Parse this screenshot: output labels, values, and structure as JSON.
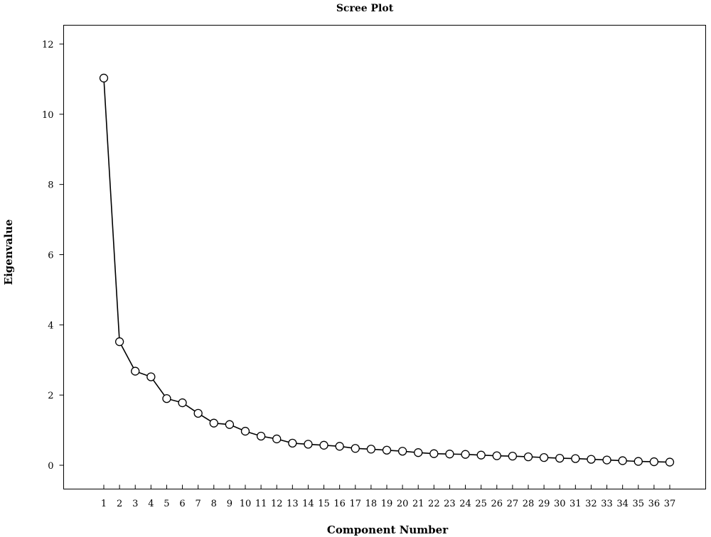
{
  "chart_data": {
    "type": "line",
    "title": "Scree Plot",
    "xlabel": "Component Number",
    "ylabel": "Eigenvalue",
    "x": [
      1,
      2,
      3,
      4,
      5,
      6,
      7,
      8,
      9,
      10,
      11,
      12,
      13,
      14,
      15,
      16,
      17,
      18,
      19,
      20,
      21,
      22,
      23,
      24,
      25,
      26,
      27,
      28,
      29,
      30,
      31,
      32,
      33,
      34,
      35,
      36,
      37
    ],
    "values": [
      11.03,
      3.52,
      2.68,
      2.52,
      1.9,
      1.78,
      1.48,
      1.2,
      1.16,
      0.97,
      0.83,
      0.75,
      0.63,
      0.6,
      0.57,
      0.54,
      0.48,
      0.46,
      0.43,
      0.4,
      0.36,
      0.33,
      0.32,
      0.31,
      0.29,
      0.27,
      0.26,
      0.24,
      0.22,
      0.2,
      0.19,
      0.17,
      0.15,
      0.13,
      0.11,
      0.1,
      0.09
    ],
    "yticks": [
      "0",
      "2",
      "4",
      "6",
      "8",
      "10",
      "12"
    ],
    "xticks": [
      "1",
      "2",
      "3",
      "4",
      "5",
      "6",
      "7",
      "8",
      "9",
      "10",
      "11",
      "12",
      "13",
      "14",
      "15",
      "16",
      "17",
      "18",
      "19",
      "20",
      "21",
      "22",
      "23",
      "24",
      "25",
      "26",
      "27",
      "28",
      "29",
      "30",
      "31",
      "32",
      "33",
      "34",
      "35",
      "36",
      "37"
    ],
    "ylim": [
      0,
      12
    ],
    "grid": false,
    "marker": "open-circle",
    "line_color": "#000000"
  }
}
